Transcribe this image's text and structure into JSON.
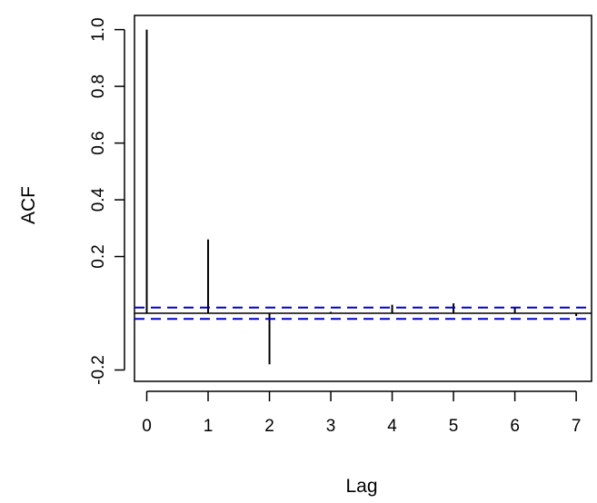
{
  "chart_data": {
    "type": "bar",
    "subtype": "acf-spike",
    "title": "",
    "xlabel": "Lag",
    "ylabel": "ACF",
    "x": [
      0,
      1,
      2,
      3,
      4,
      5,
      6,
      7
    ],
    "values": [
      1.0,
      0.26,
      -0.18,
      0.005,
      0.03,
      0.035,
      0.02,
      -0.01
    ],
    "xlim": [
      -0.2,
      7.25
    ],
    "ylim": [
      -0.24,
      1.05
    ],
    "x_ticks": [
      "0",
      "1",
      "2",
      "3",
      "4",
      "5",
      "6",
      "7"
    ],
    "x_tick_values": [
      0,
      1,
      2,
      3,
      4,
      5,
      6,
      7
    ],
    "y_ticks": [
      "-0.2",
      "0.2",
      "0.4",
      "0.6",
      "0.8",
      "1.0"
    ],
    "y_tick_values": [
      -0.2,
      0.2,
      0.4,
      0.6,
      0.8,
      1.0
    ],
    "zero_line": 0,
    "confidence_band": [
      -0.02,
      0.02
    ],
    "grid": false,
    "legend": "none",
    "colors": {
      "spike": "#000000",
      "confidence": "#0000cc",
      "axis": "#000000"
    }
  }
}
